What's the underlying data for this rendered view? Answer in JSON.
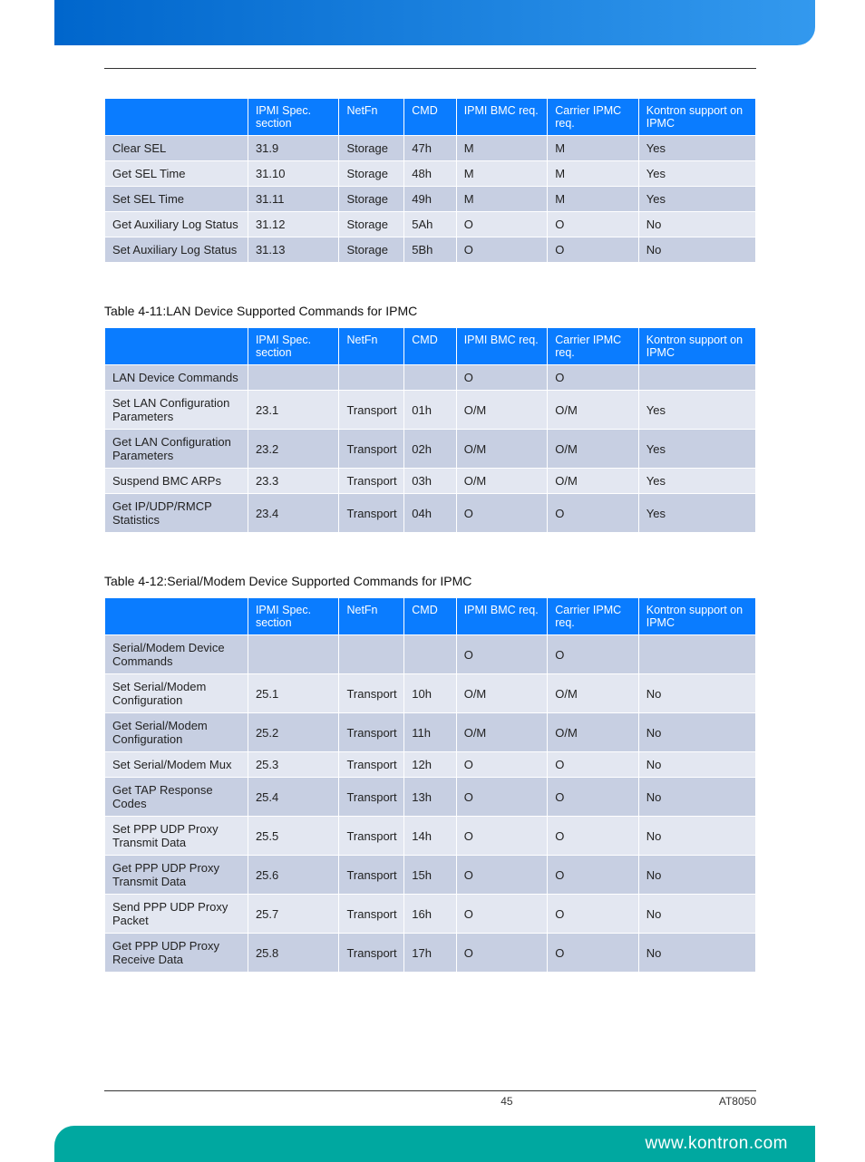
{
  "colors": {
    "header_bg": "#0a7cff",
    "row_odd": "#c7cfe2",
    "row_even": "#e3e7f1",
    "top_banner_left": "#0066cc",
    "top_banner_right": "#3399ee",
    "bottom_banner": "#00a8a0"
  },
  "col_widths_pct": [
    22,
    14,
    10,
    8,
    14,
    14,
    18
  ],
  "table1": {
    "columns": [
      "",
      "IPMI Spec. section",
      "NetFn",
      "CMD",
      "IPMI BMC req.",
      "Carrier IPMC req.",
      "Kontron support on IPMC"
    ],
    "rows": [
      [
        "Clear SEL",
        "31.9",
        "Storage",
        "47h",
        "M",
        "M",
        "Yes"
      ],
      [
        "Get SEL Time",
        "31.10",
        "Storage",
        "48h",
        "M",
        "M",
        "Yes"
      ],
      [
        "Set SEL Time",
        "31.11",
        "Storage",
        "49h",
        "M",
        "M",
        "Yes"
      ],
      [
        "Get Auxiliary Log Status",
        "31.12",
        "Storage",
        "5Ah",
        "O",
        "O",
        "No"
      ],
      [
        "Set Auxiliary Log Status",
        "31.13",
        "Storage",
        "5Bh",
        "O",
        "O",
        "No"
      ]
    ]
  },
  "table2": {
    "caption": "Table 4-11:LAN Device Supported Commands for IPMC",
    "columns": [
      "",
      "IPMI Spec. section",
      "NetFn",
      "CMD",
      "IPMI BMC req.",
      "Carrier IPMC req.",
      "Kontron support on IPMC"
    ],
    "rows": [
      [
        "LAN Device Commands",
        "",
        "",
        "",
        "O",
        "O",
        ""
      ],
      [
        "Set LAN Configuration Parameters",
        "23.1",
        "Transport",
        "01h",
        "O/M",
        "O/M",
        "Yes"
      ],
      [
        "Get LAN Configuration Parameters",
        "23.2",
        "Transport",
        "02h",
        "O/M",
        "O/M",
        "Yes"
      ],
      [
        "Suspend BMC ARPs",
        "23.3",
        "Transport",
        "03h",
        "O/M",
        "O/M",
        "Yes"
      ],
      [
        "Get IP/UDP/RMCP Statistics",
        "23.4",
        "Transport",
        "04h",
        "O",
        "O",
        "Yes"
      ]
    ]
  },
  "table3": {
    "caption": "Table 4-12:Serial/Modem Device Supported Commands for IPMC",
    "columns": [
      "",
      "IPMI Spec. section",
      "NetFn",
      "CMD",
      "IPMI BMC req.",
      "Carrier IPMC req.",
      "Kontron support on IPMC"
    ],
    "rows": [
      [
        "Serial/Modem Device Commands",
        "",
        "",
        "",
        "O",
        "O",
        ""
      ],
      [
        "Set Serial/Modem Configuration",
        "25.1",
        "Transport",
        "10h",
        "O/M",
        "O/M",
        "No"
      ],
      [
        "Get Serial/Modem Configuration",
        "25.2",
        "Transport",
        "11h",
        "O/M",
        "O/M",
        "No"
      ],
      [
        "Set Serial/Modem Mux",
        "25.3",
        "Transport",
        "12h",
        "O",
        "O",
        "No"
      ],
      [
        "Get TAP Response Codes",
        "25.4",
        "Transport",
        "13h",
        "O",
        "O",
        "No"
      ],
      [
        "Set PPP UDP Proxy Transmit Data",
        "25.5",
        "Transport",
        "14h",
        "O",
        "O",
        "No"
      ],
      [
        "Get PPP UDP Proxy Transmit Data",
        "25.6",
        "Transport",
        "15h",
        "O",
        "O",
        "No"
      ],
      [
        "Send PPP UDP Proxy Packet",
        "25.7",
        "Transport",
        "16h",
        "O",
        "O",
        "No"
      ],
      [
        "Get PPP UDP Proxy Receive Data",
        "25.8",
        "Transport",
        "17h",
        "O",
        "O",
        "No"
      ]
    ]
  },
  "footer": {
    "page": "45",
    "doc": "AT8050",
    "url": "www.kontron.com"
  }
}
